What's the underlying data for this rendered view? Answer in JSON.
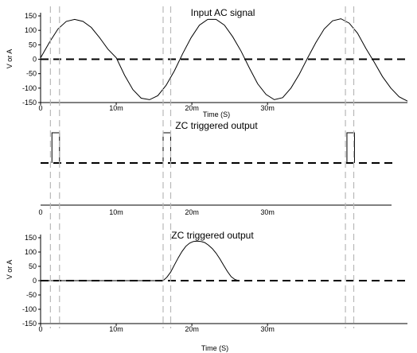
{
  "chart_data": [
    {
      "type": "line",
      "title": "Input AC signal",
      "ylabel": "V or A",
      "xlabel": "Time (S)",
      "xlim": [
        0,
        0.0485
      ],
      "ylim": [
        -150,
        150
      ],
      "y_ticks": [
        150,
        100,
        50,
        0,
        -50,
        -100,
        -150
      ],
      "x_ticks": [
        {
          "value": 0,
          "label": "0"
        },
        {
          "value": 0.01,
          "label": "10m"
        },
        {
          "value": 0.02,
          "label": "20m"
        },
        {
          "value": 0.03,
          "label": "30m"
        }
      ],
      "series": [
        {
          "style": "solid",
          "x": [
            0,
            0.0012,
            0.0023,
            0.0034,
            0.0045,
            0.0056,
            0.0067,
            0.0078,
            0.0089,
            0.01,
            0.0111,
            0.0122,
            0.0133,
            0.0144,
            0.0155,
            0.0166,
            0.0177,
            0.0188,
            0.0199,
            0.021,
            0.0221,
            0.0232,
            0.0243,
            0.0254,
            0.0265,
            0.0276,
            0.0287,
            0.0298,
            0.0309,
            0.032,
            0.0331,
            0.0342,
            0.0353,
            0.0364,
            0.0375,
            0.0386,
            0.0397,
            0.0408,
            0.0419,
            0.043,
            0.0441,
            0.0452,
            0.0463,
            0.0474,
            0.0485
          ],
          "y": [
            5,
            60,
            105,
            131,
            138,
            131,
            110,
            75,
            35,
            5,
            -55,
            -105,
            -135,
            -140,
            -126,
            -90,
            -40,
            20,
            75,
            118,
            138,
            138,
            118,
            78,
            28,
            -30,
            -85,
            -122,
            -140,
            -133,
            -100,
            -52,
            4,
            58,
            105,
            133,
            140,
            125,
            90,
            38,
            -10,
            -60,
            -100,
            -130,
            -145
          ]
        },
        {
          "style": "dashed",
          "x": [
            0,
            0.0485
          ],
          "y": [
            0,
            0
          ]
        }
      ],
      "markers_x": [
        0.0013,
        0.0025,
        0.0162,
        0.0172,
        0.0403,
        0.0414
      ]
    },
    {
      "type": "line",
      "title": "ZC triggered output",
      "xlim": [
        0,
        0.0485
      ],
      "x_ticks": [
        {
          "value": 0,
          "label": "0"
        },
        {
          "value": 0.01,
          "label": "10m"
        },
        {
          "value": 0.02,
          "label": "20m"
        },
        {
          "value": 0.03,
          "label": "30m"
        }
      ],
      "series": [
        {
          "style": "solid",
          "pulses": [
            [
              0.0015,
              0.0025
            ],
            [
              0.0162,
              0.0172
            ],
            [
              0.0405,
              0.0415
            ]
          ]
        },
        {
          "style": "dashed",
          "level": "baseline"
        }
      ],
      "markers_x": [
        0.0013,
        0.0025,
        0.0162,
        0.0172,
        0.0403,
        0.0414
      ]
    },
    {
      "type": "line",
      "title": "ZC triggered output",
      "ylabel": "V or A",
      "xlabel": "Time (S)",
      "xlim": [
        0,
        0.0485
      ],
      "ylim": [
        -150,
        150
      ],
      "y_ticks": [
        150,
        100,
        50,
        0,
        -50,
        -100,
        -150
      ],
      "x_ticks": [
        {
          "value": 0,
          "label": "0"
        },
        {
          "value": 0.01,
          "label": "10m"
        },
        {
          "value": 0.02,
          "label": "20m"
        },
        {
          "value": 0.03,
          "label": "30m"
        }
      ],
      "series": [
        {
          "style": "solid",
          "x": [
            0,
            0.0162,
            0.0167,
            0.0172,
            0.0177,
            0.0182,
            0.0187,
            0.0192,
            0.0197,
            0.0202,
            0.0207,
            0.0212,
            0.0217,
            0.0222,
            0.0227,
            0.0232,
            0.0237,
            0.0242,
            0.0247,
            0.0252,
            0.0257,
            0.0262
          ],
          "y": [
            0,
            0,
            12,
            30,
            55,
            80,
            102,
            120,
            131,
            137,
            138,
            137,
            133,
            124,
            112,
            96,
            76,
            54,
            32,
            14,
            4,
            0
          ]
        },
        {
          "style": "dashed",
          "x": [
            0,
            0.0485
          ],
          "y": [
            0,
            0
          ]
        }
      ],
      "markers_x": [
        0.0013,
        0.0025,
        0.0162,
        0.0172,
        0.0403,
        0.0414
      ]
    }
  ]
}
